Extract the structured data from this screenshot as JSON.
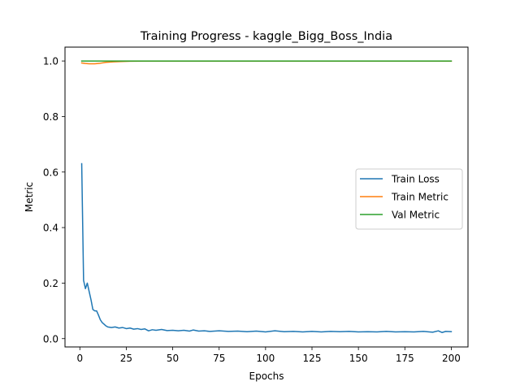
{
  "chart_data": {
    "type": "line",
    "title": "Training Progress - kaggle_Bigg_Boss_India",
    "xlabel": "Epochs",
    "ylabel": "Metric",
    "xlim": [
      -8,
      209
    ],
    "ylim": [
      -0.03,
      1.05
    ],
    "x_ticks": [
      0,
      25,
      50,
      75,
      100,
      125,
      150,
      175,
      200
    ],
    "x_tick_labels": [
      "0",
      "25",
      "50",
      "75",
      "100",
      "125",
      "150",
      "175",
      "200"
    ],
    "y_ticks": [
      0.0,
      0.2,
      0.4,
      0.6,
      0.8,
      1.0
    ],
    "y_tick_labels": [
      "0.0",
      "0.2",
      "0.4",
      "0.6",
      "0.8",
      "1.0"
    ],
    "grid": false,
    "legend_position": "center-right",
    "series": [
      {
        "name": "Train Loss",
        "color": "#1f77b4",
        "points": [
          [
            1,
            0.63
          ],
          [
            2,
            0.21
          ],
          [
            3,
            0.18
          ],
          [
            4,
            0.2
          ],
          [
            5,
            0.17
          ],
          [
            6,
            0.14
          ],
          [
            7,
            0.105
          ],
          [
            8,
            0.1
          ],
          [
            9,
            0.1
          ],
          [
            10,
            0.085
          ],
          [
            11,
            0.068
          ],
          [
            12,
            0.058
          ],
          [
            13,
            0.052
          ],
          [
            14,
            0.046
          ],
          [
            15,
            0.042
          ],
          [
            17,
            0.04
          ],
          [
            19,
            0.042
          ],
          [
            21,
            0.038
          ],
          [
            23,
            0.04
          ],
          [
            25,
            0.036
          ],
          [
            27,
            0.038
          ],
          [
            29,
            0.034
          ],
          [
            31,
            0.036
          ],
          [
            33,
            0.033
          ],
          [
            35,
            0.035
          ],
          [
            37,
            0.028
          ],
          [
            39,
            0.032
          ],
          [
            41,
            0.03
          ],
          [
            44,
            0.033
          ],
          [
            47,
            0.029
          ],
          [
            50,
            0.03
          ],
          [
            53,
            0.028
          ],
          [
            56,
            0.03
          ],
          [
            59,
            0.027
          ],
          [
            61,
            0.031
          ],
          [
            64,
            0.027
          ],
          [
            67,
            0.028
          ],
          [
            70,
            0.026
          ],
          [
            75,
            0.028
          ],
          [
            80,
            0.026
          ],
          [
            85,
            0.027
          ],
          [
            90,
            0.025
          ],
          [
            95,
            0.027
          ],
          [
            100,
            0.024
          ],
          [
            105,
            0.028
          ],
          [
            110,
            0.025
          ],
          [
            115,
            0.026
          ],
          [
            120,
            0.024
          ],
          [
            125,
            0.026
          ],
          [
            130,
            0.024
          ],
          [
            135,
            0.026
          ],
          [
            140,
            0.025
          ],
          [
            145,
            0.026
          ],
          [
            150,
            0.024
          ],
          [
            155,
            0.025
          ],
          [
            160,
            0.024
          ],
          [
            165,
            0.026
          ],
          [
            170,
            0.024
          ],
          [
            175,
            0.025
          ],
          [
            180,
            0.024
          ],
          [
            185,
            0.026
          ],
          [
            190,
            0.023
          ],
          [
            193,
            0.028
          ],
          [
            195,
            0.022
          ],
          [
            197,
            0.026
          ],
          [
            200,
            0.025
          ]
        ]
      },
      {
        "name": "Train Metric",
        "color": "#ff7f0e",
        "points": [
          [
            1,
            0.993
          ],
          [
            3,
            0.991
          ],
          [
            5,
            0.99
          ],
          [
            8,
            0.99
          ],
          [
            11,
            0.992
          ],
          [
            14,
            0.995
          ],
          [
            18,
            0.997
          ],
          [
            22,
            0.998
          ],
          [
            27,
            0.999
          ],
          [
            35,
            0.9995
          ],
          [
            50,
            0.9995
          ],
          [
            100,
            0.9995
          ],
          [
            150,
            0.9995
          ],
          [
            200,
            0.9995
          ]
        ]
      },
      {
        "name": "Val Metric",
        "color": "#2ca02c",
        "points": [
          [
            1,
            1.0
          ],
          [
            200,
            1.0
          ]
        ]
      }
    ]
  }
}
